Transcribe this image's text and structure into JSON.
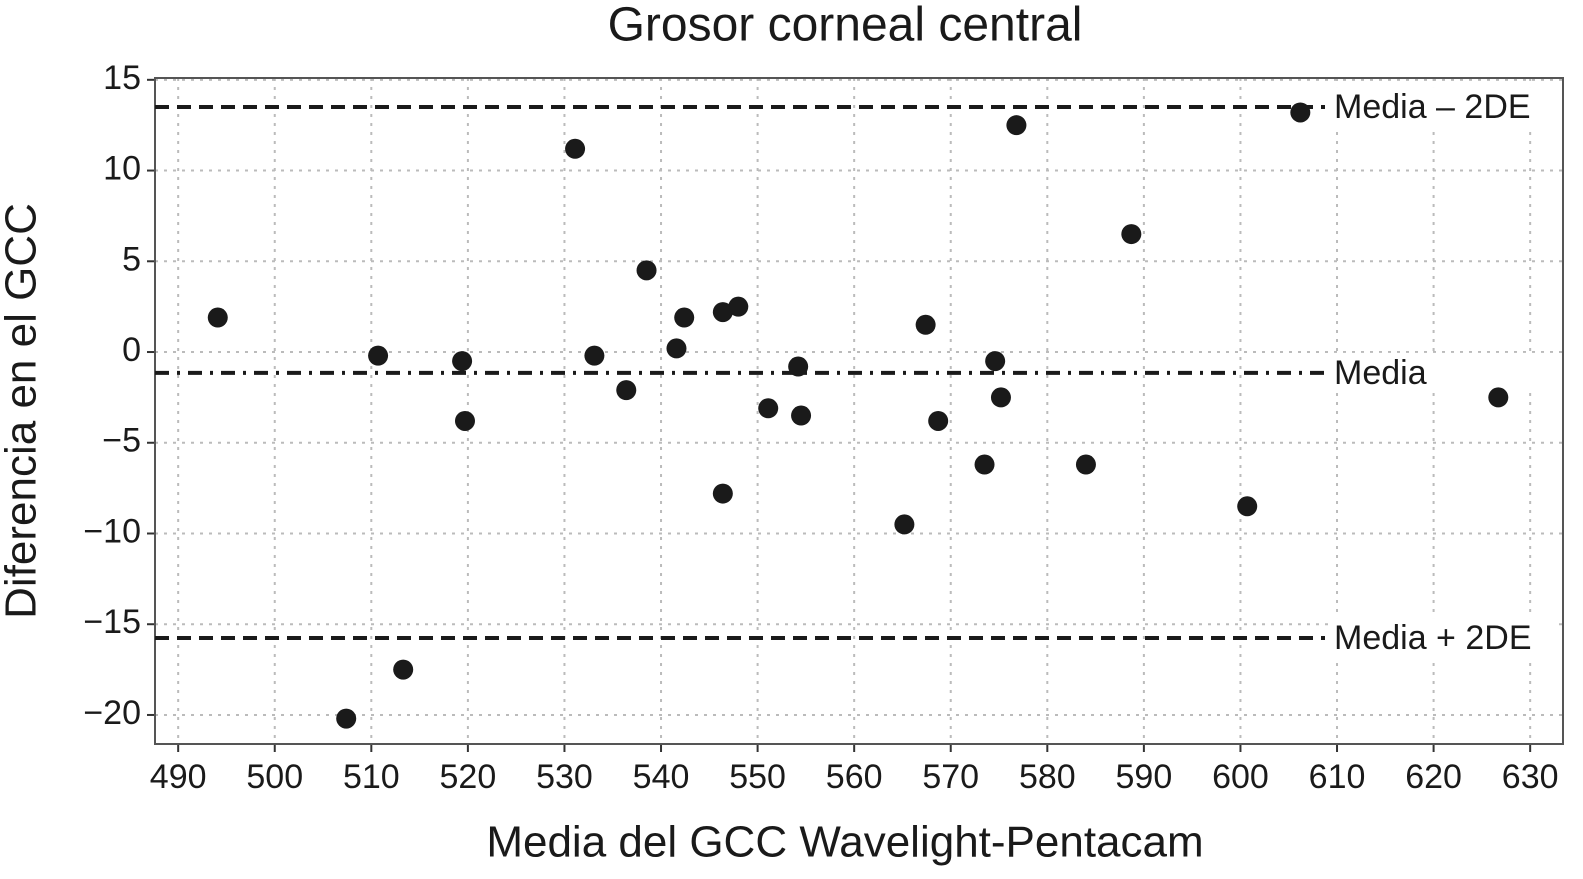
{
  "chart_data": {
    "type": "scatter",
    "title": "Grosor corneal central",
    "x_label": "Media del GCC Wavelight-Pentacam",
    "y_label": "Diferencia en el GCC",
    "color": "#1a1a1a",
    "grid": true,
    "xlim": [
      487.6,
      633.4
    ],
    "ylim": [
      -21.6,
      15.1
    ],
    "xticks": [
      490,
      500,
      510,
      520,
      530,
      540,
      550,
      560,
      570,
      580,
      590,
      600,
      610,
      620,
      630
    ],
    "yticks": [
      15,
      10,
      5,
      0,
      {
        "value": -5,
        "label": "−5"
      },
      {
        "value": -10,
        "label": "−10"
      },
      {
        "value": -15,
        "label": "−15"
      },
      {
        "value": -20,
        "label": "−20"
      }
    ],
    "hlines": [
      {
        "label": "Media – 2DE",
        "value": 13.5,
        "dash": "dashed"
      },
      {
        "label": "Media",
        "value": -1.15,
        "dash": "dashdot"
      },
      {
        "label": "Media + 2DE",
        "value": -15.76,
        "dash": "dashed"
      }
    ],
    "x": [
      494.1,
      507.4,
      510.7,
      513.3,
      519.4,
      519.7,
      531.1,
      533.1,
      536.4,
      538.5,
      541.6,
      542.4,
      546.4,
      546.4,
      548.0,
      551.1,
      554.2,
      554.5,
      565.2,
      567.4,
      568.7,
      573.5,
      574.6,
      575.2,
      576.8,
      584.0,
      588.7,
      600.7,
      606.2,
      626.7
    ],
    "y": [
      1.9,
      -20.2,
      -0.2,
      -17.5,
      -0.5,
      -3.8,
      11.2,
      -0.2,
      -2.1,
      4.5,
      0.2,
      1.9,
      2.2,
      -7.8,
      2.5,
      -3.1,
      -0.8,
      -3.5,
      -9.5,
      1.5,
      -3.8,
      -6.2,
      -0.5,
      -2.5,
      12.5,
      -6.2,
      6.5,
      -8.5,
      13.2,
      -2.5
    ]
  }
}
